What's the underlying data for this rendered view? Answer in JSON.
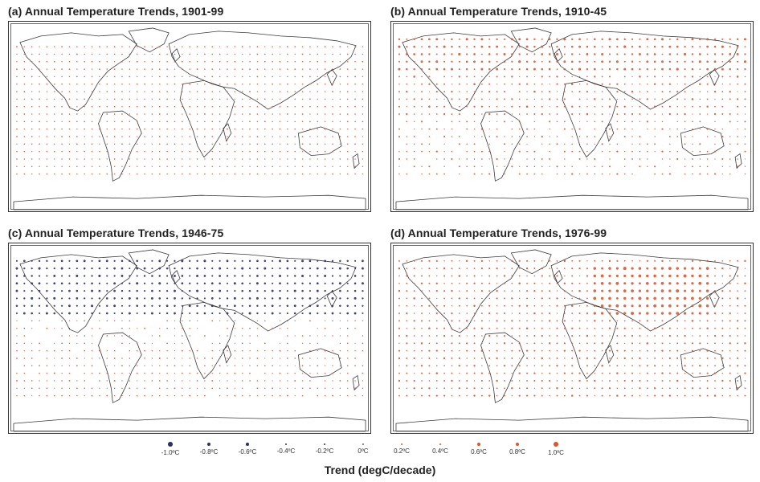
{
  "panels": [
    {
      "id": "a",
      "title": "(a) Annual Temperature Trends, 1901-99",
      "pattern": "mild-warming"
    },
    {
      "id": "b",
      "title": "(b) Annual Temperature Trends, 1910-45",
      "pattern": "high-latitude-warming"
    },
    {
      "id": "c",
      "title": "(c) Annual Temperature Trends, 1946-75",
      "pattern": "northern-cooling"
    },
    {
      "id": "d",
      "title": "(d) Annual Temperature Trends, 1976-99",
      "pattern": "strong-warming"
    }
  ],
  "legend": {
    "items": [
      {
        "label": "-1.0ºC",
        "value": -1.0
      },
      {
        "label": "-0.8ºC",
        "value": -0.8
      },
      {
        "label": "-0.6ºC",
        "value": -0.6
      },
      {
        "label": "-0.4ºC",
        "value": -0.4
      },
      {
        "label": "-0.2ºC",
        "value": -0.2
      },
      {
        "label": "0ºC",
        "value": 0.0
      },
      {
        "label": "0.2ºC",
        "value": 0.2
      },
      {
        "label": "0.4ºC",
        "value": 0.4
      },
      {
        "label": "0.6ºC",
        "value": 0.6
      },
      {
        "label": "0.8ºC",
        "value": 0.8
      },
      {
        "label": "1.0ºC",
        "value": 1.0
      }
    ],
    "caption": "Trend (degC/decade)",
    "colors": {
      "cooling": "#2b2f6e",
      "warming": "#e0552a"
    }
  }
}
